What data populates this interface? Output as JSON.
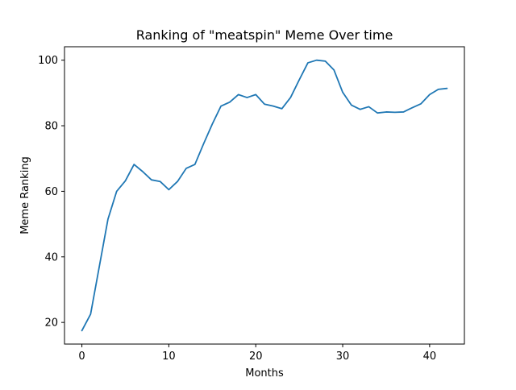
{
  "chart_data": {
    "type": "line",
    "title": "Ranking of \"meatspin\" Meme Over time",
    "xlabel": "Months",
    "ylabel": "Meme Ranking",
    "xlim": [
      -2,
      44
    ],
    "ylim": [
      13.4,
      104.1
    ],
    "xticks": [
      0,
      10,
      20,
      30,
      40
    ],
    "yticks": [
      20,
      40,
      60,
      80,
      100
    ],
    "grid": false,
    "line_color": "#1f77b4",
    "series": [
      {
        "x": [
          0,
          1,
          2,
          3,
          4,
          5,
          6,
          7,
          8,
          9,
          10,
          11,
          12,
          13,
          14,
          15,
          16,
          17,
          18,
          19,
          20,
          21,
          22,
          23,
          24,
          25,
          26,
          27,
          28,
          29,
          30,
          31,
          32,
          33,
          34,
          35,
          36,
          37,
          38,
          39,
          40,
          41,
          42
        ],
        "values": [
          17.5,
          22.5,
          37,
          51.5,
          60,
          63.2,
          68.2,
          66,
          63.5,
          63,
          60.5,
          63,
          67,
          68.2,
          74.5,
          80.5,
          86,
          87.2,
          89.5,
          88.6,
          89.5,
          86.6,
          86,
          85.2,
          88.6,
          94,
          99.2,
          100,
          99.7,
          97,
          90.2,
          86.3,
          85,
          85.8,
          83.9,
          84.2,
          84.1,
          84.2,
          85.5,
          86.7,
          89.5,
          91.1,
          91.4
        ]
      }
    ]
  }
}
